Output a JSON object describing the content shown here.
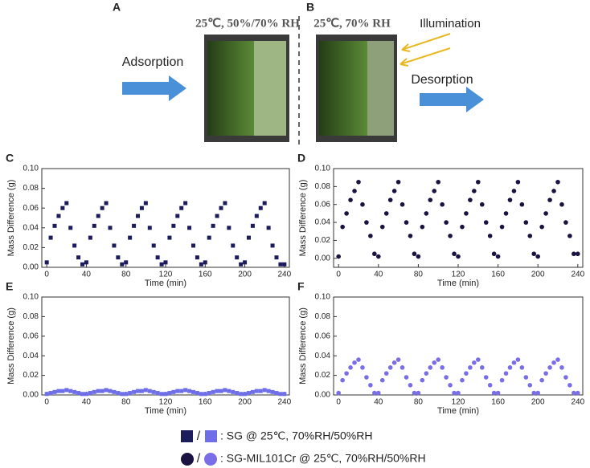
{
  "schematic": {
    "panel_a": "A",
    "panel_b": "B",
    "condition_a": "25℃, 50%/70% RH",
    "condition_b": "25℃, 70% RH",
    "illumination": "Illumination",
    "adsorption": "Adsorption",
    "desorption": "Desorption"
  },
  "legend": {
    "separator": "/",
    "entries": [
      ": SG @ 25℃, 70%RH/50%RH",
      ": SG-MIL101Cr @ 25℃, 70%RH/50%RH"
    ]
  },
  "chart_data": [
    {
      "type": "scatter",
      "panel": "C",
      "marker": "square",
      "color": "#1c1c5c",
      "xlabel": "Time (min)",
      "ylabel": "Mass Difference (g)",
      "xlim": [
        -5,
        245
      ],
      "ylim": [
        0,
        0.1
      ],
      "xticks": [
        0,
        40,
        80,
        120,
        160,
        200,
        240
      ],
      "yticks": [
        {
          "value": 0,
          "label": "0.00"
        },
        {
          "value": 0.02,
          "label": "0.02"
        },
        {
          "value": 0.04,
          "label": "0.04"
        },
        {
          "value": 0.06,
          "label": "0.06"
        },
        {
          "value": 0.08,
          "label": "0.08"
        },
        {
          "value": 0.1,
          "label": "0.10"
        }
      ],
      "x": [
        0,
        4,
        8,
        12,
        16,
        20,
        24,
        28,
        32,
        36,
        40,
        44,
        48,
        52,
        56,
        60,
        64,
        68,
        72,
        76,
        80,
        84,
        88,
        92,
        96,
        100,
        104,
        108,
        112,
        116,
        120,
        124,
        128,
        132,
        136,
        140,
        144,
        148,
        152,
        156,
        160,
        164,
        168,
        172,
        176,
        180,
        184,
        188,
        192,
        196,
        200,
        204,
        208,
        212,
        216,
        220,
        224,
        228,
        232,
        236,
        240
      ],
      "values": [
        0.005,
        0.03,
        0.042,
        0.052,
        0.06,
        0.065,
        0.04,
        0.022,
        0.01,
        0.003,
        0.005,
        0.03,
        0.042,
        0.052,
        0.06,
        0.065,
        0.04,
        0.022,
        0.01,
        0.003,
        0.005,
        0.03,
        0.042,
        0.052,
        0.06,
        0.065,
        0.04,
        0.022,
        0.01,
        0.003,
        0.005,
        0.03,
        0.042,
        0.052,
        0.06,
        0.065,
        0.04,
        0.022,
        0.01,
        0.003,
        0.005,
        0.03,
        0.042,
        0.052,
        0.06,
        0.065,
        0.04,
        0.022,
        0.01,
        0.003,
        0.005,
        0.03,
        0.042,
        0.052,
        0.06,
        0.065,
        0.04,
        0.022,
        0.01,
        0.003,
        0.003
      ]
    },
    {
      "type": "scatter",
      "panel": "D",
      "marker": "circle",
      "color": "#1a1240",
      "xlabel": "Time (min)",
      "ylabel": "Mass Difference (g)",
      "xlim": [
        -5,
        245
      ],
      "ylim": [
        -0.01,
        0.1
      ],
      "xticks": [
        0,
        40,
        80,
        120,
        160,
        200,
        240
      ],
      "yticks": [
        {
          "value": 0,
          "label": "0.00"
        },
        {
          "value": 0.02,
          "label": "0.02"
        },
        {
          "value": 0.04,
          "label": "0.04"
        },
        {
          "value": 0.06,
          "label": "0.06"
        },
        {
          "value": 0.08,
          "label": "0.08"
        },
        {
          "value": 0.1,
          "label": "0.10"
        }
      ],
      "x": [
        0,
        4,
        8,
        12,
        16,
        20,
        24,
        28,
        32,
        36,
        40,
        44,
        48,
        52,
        56,
        60,
        64,
        68,
        72,
        76,
        80,
        84,
        88,
        92,
        96,
        100,
        104,
        108,
        112,
        116,
        120,
        124,
        128,
        132,
        136,
        140,
        144,
        148,
        152,
        156,
        160,
        164,
        168,
        172,
        176,
        180,
        184,
        188,
        192,
        196,
        200,
        204,
        208,
        212,
        216,
        220,
        224,
        228,
        232,
        236,
        240
      ],
      "values": [
        0.002,
        0.035,
        0.05,
        0.065,
        0.075,
        0.085,
        0.06,
        0.04,
        0.025,
        0.005,
        0.002,
        0.035,
        0.05,
        0.065,
        0.075,
        0.085,
        0.06,
        0.04,
        0.025,
        0.005,
        0.002,
        0.035,
        0.05,
        0.065,
        0.075,
        0.085,
        0.06,
        0.04,
        0.025,
        0.005,
        0.002,
        0.035,
        0.05,
        0.065,
        0.075,
        0.085,
        0.06,
        0.04,
        0.025,
        0.005,
        0.002,
        0.035,
        0.05,
        0.065,
        0.075,
        0.085,
        0.06,
        0.04,
        0.025,
        0.005,
        0.002,
        0.035,
        0.05,
        0.065,
        0.075,
        0.085,
        0.06,
        0.04,
        0.025,
        0.005,
        0.005
      ]
    },
    {
      "type": "scatter",
      "panel": "E",
      "marker": "square",
      "color": "#6e6ee8",
      "xlabel": "Time (min)",
      "ylabel": "Mass Difference (g)",
      "xlim": [
        -5,
        245
      ],
      "ylim": [
        0,
        0.1
      ],
      "xticks": [
        0,
        40,
        80,
        120,
        160,
        200,
        240
      ],
      "yticks": [
        {
          "value": 0,
          "label": "0.00"
        },
        {
          "value": 0.02,
          "label": "0.02"
        },
        {
          "value": 0.04,
          "label": "0.04"
        },
        {
          "value": 0.06,
          "label": "0.06"
        },
        {
          "value": 0.08,
          "label": "0.08"
        },
        {
          "value": 0.1,
          "label": "0.10"
        }
      ],
      "x": [
        0,
        4,
        8,
        12,
        16,
        20,
        24,
        28,
        32,
        36,
        40,
        44,
        48,
        52,
        56,
        60,
        64,
        68,
        72,
        76,
        80,
        84,
        88,
        92,
        96,
        100,
        104,
        108,
        112,
        116,
        120,
        124,
        128,
        132,
        136,
        140,
        144,
        148,
        152,
        156,
        160,
        164,
        168,
        172,
        176,
        180,
        184,
        188,
        192,
        196,
        200,
        204,
        208,
        212,
        216,
        220,
        224,
        228,
        232,
        236,
        240
      ],
      "values": [
        0.001,
        0.002,
        0.003,
        0.004,
        0.004,
        0.005,
        0.004,
        0.003,
        0.002,
        0.001,
        0.001,
        0.002,
        0.003,
        0.004,
        0.004,
        0.005,
        0.004,
        0.003,
        0.002,
        0.001,
        0.001,
        0.002,
        0.003,
        0.004,
        0.004,
        0.005,
        0.004,
        0.003,
        0.002,
        0.001,
        0.001,
        0.002,
        0.003,
        0.004,
        0.004,
        0.005,
        0.004,
        0.003,
        0.002,
        0.001,
        0.001,
        0.002,
        0.003,
        0.004,
        0.004,
        0.005,
        0.004,
        0.003,
        0.002,
        0.001,
        0.001,
        0.002,
        0.003,
        0.004,
        0.004,
        0.005,
        0.004,
        0.003,
        0.002,
        0.001,
        0.001
      ]
    },
    {
      "type": "scatter",
      "panel": "F",
      "marker": "circle",
      "color": "#7a6ee8",
      "xlabel": "Time (min)",
      "ylabel": "Mass Difference (g)",
      "xlim": [
        -5,
        245
      ],
      "ylim": [
        0,
        0.1
      ],
      "xticks": [
        0,
        40,
        80,
        120,
        160,
        200,
        240
      ],
      "yticks": [
        {
          "value": 0,
          "label": "0.00"
        },
        {
          "value": 0.02,
          "label": "0.02"
        },
        {
          "value": 0.04,
          "label": "0.04"
        },
        {
          "value": 0.06,
          "label": "0.06"
        },
        {
          "value": 0.08,
          "label": "0.08"
        },
        {
          "value": 0.1,
          "label": "0.10"
        }
      ],
      "x": [
        0,
        4,
        8,
        12,
        16,
        20,
        24,
        28,
        32,
        36,
        40,
        44,
        48,
        52,
        56,
        60,
        64,
        68,
        72,
        76,
        80,
        84,
        88,
        92,
        96,
        100,
        104,
        108,
        112,
        116,
        120,
        124,
        128,
        132,
        136,
        140,
        144,
        148,
        152,
        156,
        160,
        164,
        168,
        172,
        176,
        180,
        184,
        188,
        192,
        196,
        200,
        204,
        208,
        212,
        216,
        220,
        224,
        228,
        232,
        236,
        240
      ],
      "values": [
        0.002,
        0.015,
        0.022,
        0.028,
        0.033,
        0.036,
        0.028,
        0.018,
        0.01,
        0.002,
        0.002,
        0.015,
        0.022,
        0.028,
        0.033,
        0.036,
        0.028,
        0.018,
        0.01,
        0.002,
        0.002,
        0.015,
        0.022,
        0.028,
        0.033,
        0.036,
        0.028,
        0.018,
        0.01,
        0.002,
        0.002,
        0.015,
        0.022,
        0.028,
        0.033,
        0.036,
        0.028,
        0.018,
        0.01,
        0.002,
        0.002,
        0.015,
        0.022,
        0.028,
        0.033,
        0.036,
        0.028,
        0.018,
        0.01,
        0.002,
        0.002,
        0.015,
        0.022,
        0.028,
        0.033,
        0.036,
        0.028,
        0.018,
        0.01,
        0.002,
        0.002
      ]
    }
  ]
}
